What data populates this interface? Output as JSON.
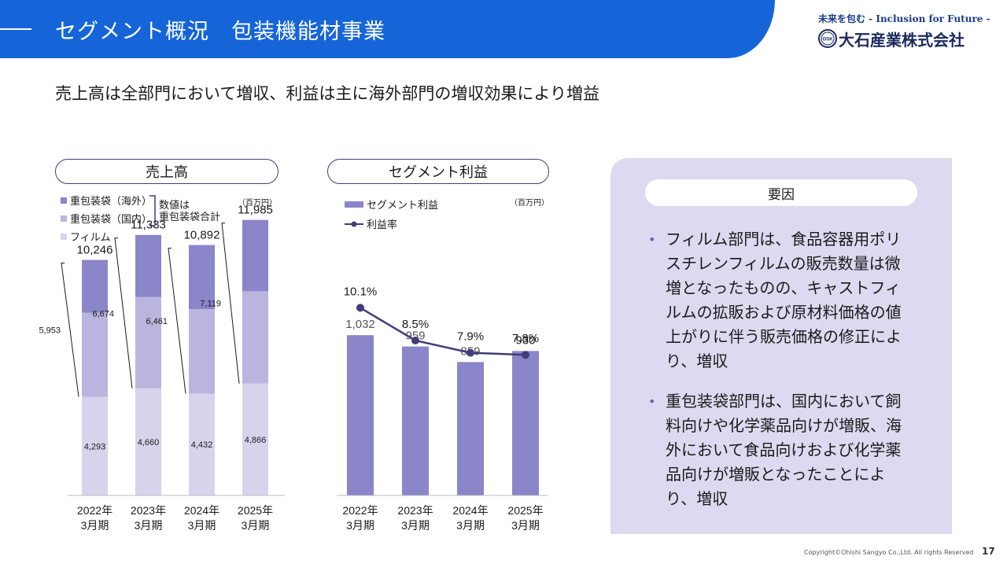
{
  "header": {
    "title": "セグメント概況　包装機能材事業"
  },
  "logo": {
    "tagline": "未来を包む - Inclusion for Future -",
    "mark_text": "OSK",
    "company": "大石産業株式会社"
  },
  "headline": "売上高は全部門において増収、利益は主に海外部門の増収効果により増益",
  "sales_chart": {
    "title": "売上高",
    "unit": "（百万円）",
    "legend_note_line1": "数値は",
    "legend_note_line2": "重包装袋合計"
  },
  "profit_chart": {
    "title": "セグメント利益",
    "unit": "（百万円）"
  },
  "factors": {
    "title": "要因",
    "bullet": "•",
    "items": [
      "フィルム部門は、食品容器用ポリスチレンフィルムの販売数量は微増となったものの、キャストフィルムの拡販および原材料価格の値上がりに伴う販売価格の修正により、増収",
      "重包装袋部門は、国内において飼料向けや化学薬品向けが増販、海外において食品向けおよび化学薬品向けが増販となったことにより、増収"
    ]
  },
  "footer": {
    "copyright": "Copyright©Ohishi Sangyo Co.,Ltd. All rights Reserved",
    "page": "17"
  },
  "chart_data": [
    {
      "type": "bar",
      "stacked": true,
      "title": "売上高",
      "categories": [
        [
          "2022年",
          "3月期"
        ],
        [
          "2023年",
          "3月期"
        ],
        [
          "2024年",
          "3月期"
        ],
        [
          "2025年",
          "3月期"
        ]
      ],
      "series": [
        {
          "name": "フィルム",
          "values": [
            4293,
            4660,
            4432,
            4866
          ],
          "color": "#d6d4ec"
        },
        {
          "name": "重包装袋（国内）",
          "values": [
            3655,
            3972,
            3673,
            4018
          ],
          "color": "#b9b5df"
        },
        {
          "name": "重包装袋（海外）",
          "values": [
            2298,
            2701,
            2788,
            3101
          ],
          "color": "#8b85c9"
        }
      ],
      "totals": [
        10246,
        11333,
        10892,
        11985
      ],
      "heavy_bag_totals": [
        5953,
        6674,
        6461,
        7119
      ],
      "ylim": [
        0,
        13000
      ]
    },
    {
      "type": "bar+line",
      "title": "セグメント利益",
      "categories": [
        [
          "2022年",
          "3月期"
        ],
        [
          "2023年",
          "3月期"
        ],
        [
          "2024年",
          "3月期"
        ],
        [
          "2025年",
          "3月期"
        ]
      ],
      "bar_series": {
        "name": "セグメント利益",
        "values": [
          1032,
          959,
          859,
          930
        ],
        "color": "#8b85c9"
      },
      "line_series": {
        "name": "利益率",
        "values_percent": [
          10.1,
          8.5,
          7.9,
          7.8
        ],
        "labels": [
          "10.1%",
          "8.5%",
          "7.9%",
          "7.8%"
        ],
        "color": "#3f3d7a"
      },
      "bar_ylim": [
        0,
        2000
      ],
      "line_ylim": [
        0,
        14
      ]
    }
  ]
}
